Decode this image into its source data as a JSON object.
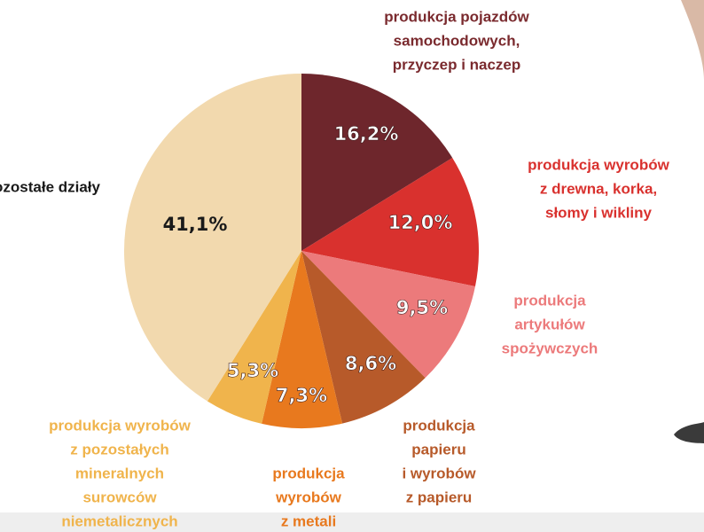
{
  "chart_data": {
    "type": "pie",
    "categories": [
      [
        "produkcja pojazdów",
        "samochodowych,",
        "przyczep i naczep"
      ],
      [
        "produkcja wyrobów",
        "z drewna, korka,",
        "słomy i wikliny"
      ],
      [
        "produkcja",
        "artykułów",
        "spożywczych"
      ],
      [
        "produkcja",
        "papieru",
        "i wyrobów",
        "z papieru"
      ],
      [
        "produkcja",
        "wyrobów",
        "z metali"
      ],
      [
        "produkcja wyrobów",
        "z pozostałych",
        "mineralnych",
        "surowców",
        "niemetalicznych"
      ],
      [
        "pozostałe działy"
      ]
    ],
    "values": [
      16.2,
      12.0,
      9.5,
      8.6,
      7.3,
      5.3,
      41.1
    ],
    "value_labels": [
      "16,2%",
      "12,0%",
      "9,5%",
      "8,6%",
      "7,3%",
      "5,3%",
      "41,1%"
    ],
    "colors": [
      "#6e262c",
      "#d9312e",
      "#ec7a7b",
      "#b75a2a",
      "#e8791e",
      "#f0b44c",
      "#f2d9ae"
    ],
    "label_colors": [
      "#7a2a2e",
      "#d9312e",
      "#ec7a7b",
      "#b75a2a",
      "#e8791e",
      "#f0b44c",
      "#1a1a1a"
    ],
    "value_label_colors": [
      "#ffffff",
      "#ffffff",
      "#ffffff",
      "#ffffff",
      "#ffffff",
      "#ffffff",
      "#1a1a1a"
    ]
  }
}
